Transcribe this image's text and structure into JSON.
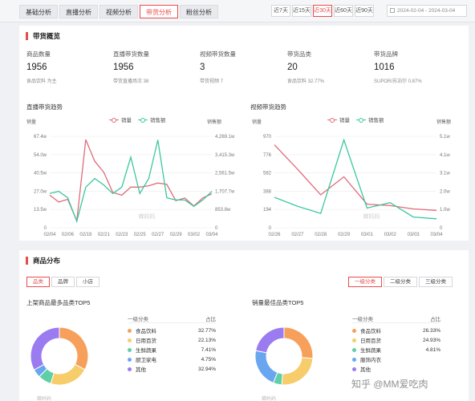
{
  "tabs": [
    "基础分析",
    "直播分析",
    "视频分析",
    "带货分析",
    "粉丝分析"
  ],
  "ranges": [
    "近7天",
    "近15天",
    "近30天",
    "近60天",
    "近90天"
  ],
  "date_range": "2024-02-04 - 2024-03-04",
  "overview": {
    "title": "带货概览",
    "metrics": [
      {
        "label": "商品数量",
        "value": "1956",
        "sub": "食品饮料 为主"
      },
      {
        "label": "直播带货数量",
        "value": "1956",
        "sub": "带货直播场次 38"
      },
      {
        "label": "视频带货数量",
        "value": "3",
        "sub": "带货视频 7"
      },
      {
        "label": "带货品类",
        "value": "20",
        "sub": "食品饮料 32.77%"
      },
      {
        "label": "带货品牌",
        "value": "1016",
        "sub": "SUPOR/苏泊尔 0.87%"
      }
    ]
  },
  "charts": {
    "live": {
      "title": "直播带货趋势",
      "legend": [
        "销量",
        "销售额"
      ],
      "left_title": "销量",
      "right_title": "销售额",
      "left_ticks": [
        "67.4w",
        "54.0w",
        "40.5w",
        "27.0w",
        "13.5w",
        "0"
      ],
      "right_ticks": [
        "4,269.1w",
        "3,415.3w",
        "2,561.5w",
        "1,707.7w",
        "853.8w",
        "0"
      ],
      "x_ticks": [
        "02/04",
        "02/06",
        "02/19",
        "02/21",
        "02/23",
        "02/25",
        "02/27",
        "02/29",
        "03/02",
        "03/04"
      ]
    },
    "video": {
      "title": "视频带货趋势",
      "legend": [
        "销量",
        "销售额"
      ],
      "left_title": "销量",
      "right_title": "销售额",
      "left_ticks": [
        "970",
        "776",
        "582",
        "388",
        "194",
        "0"
      ],
      "right_ticks": [
        "5.1w",
        "4.1w",
        "3.1w",
        "2.0w",
        "1.0w",
        "0"
      ],
      "x_ticks": [
        "02/26",
        "02/27",
        "02/28",
        "02/29",
        "03/01",
        "03/02",
        "03/03",
        "03/04"
      ]
    }
  },
  "chart_data": [
    {
      "type": "line",
      "title": "直播带货趋势",
      "x": [
        "02/04",
        "02/05",
        "02/06",
        "02/07",
        "02/19",
        "02/20",
        "02/21",
        "02/22",
        "02/23",
        "02/24",
        "02/25",
        "02/26",
        "02/27",
        "02/28",
        "02/29",
        "03/01",
        "03/02",
        "03/03",
        "03/04"
      ],
      "series": [
        {
          "name": "销量",
          "axis": "left",
          "values": [
            24,
            19,
            21,
            5,
            65,
            49,
            41,
            26,
            24,
            30,
            30,
            31,
            33,
            32,
            20,
            22,
            16,
            22,
            25
          ]
        },
        {
          "name": "销售额",
          "axis": "right",
          "values": [
            1600,
            1700,
            1400,
            300,
            1900,
            2300,
            2000,
            1600,
            1900,
            3300,
            1600,
            2300,
            4100,
            1400,
            1300,
            1300,
            1000,
            1300,
            1700
          ]
        }
      ],
      "ylim_left": [
        0,
        67.4
      ],
      "ylim_right": [
        0,
        4269.1
      ]
    },
    {
      "type": "line",
      "title": "视频带货趋势",
      "x": [
        "02/26",
        "02/27",
        "02/28",
        "02/29",
        "03/01",
        "03/02",
        "03/03",
        "03/04"
      ],
      "series": [
        {
          "name": "销量",
          "axis": "left",
          "values": [
            880,
            620,
            350,
            540,
            250,
            235,
            200,
            185
          ]
        },
        {
          "name": "销售额",
          "axis": "right",
          "values": [
            1.7,
            1.2,
            0.8,
            4.9,
            1.1,
            1.4,
            0.6,
            0.5
          ]
        }
      ],
      "ylim_left": [
        0,
        970
      ],
      "ylim_right": [
        0,
        5.1
      ]
    }
  ],
  "distribution": {
    "title": "商品分布",
    "left_buttons": [
      "品类",
      "品牌",
      "小店"
    ],
    "right_buttons": [
      "一级分类",
      "二级分类",
      "三级分类"
    ],
    "list1": {
      "title": "上架商品最多品类TOP5",
      "col1": "一级分类",
      "col2": "占比",
      "rows": [
        {
          "name": "食品饮料",
          "pct": "32.77%",
          "color": "#f6a05c"
        },
        {
          "name": "日用百货",
          "pct": "22.13%",
          "color": "#f7cc6b"
        },
        {
          "name": "生鲜蔬果",
          "pct": "7.41%",
          "color": "#5fcfa5"
        },
        {
          "name": "厨卫家电",
          "pct": "4.75%",
          "color": "#6aa6f0"
        },
        {
          "name": "其他",
          "pct": "32.94%",
          "color": "#9b7cf0"
        }
      ]
    },
    "list2": {
      "title": "销量最佳品类TOP5",
      "col1": "一级分类",
      "col2": "占比",
      "rows": [
        {
          "name": "食品饮料",
          "pct": "26.33%",
          "color": "#f6a05c"
        },
        {
          "name": "日用百货",
          "pct": "24.93%",
          "color": "#f7cc6b"
        },
        {
          "name": "生鲜蔬果",
          "pct": "4.81%",
          "color": "#5fcfa5"
        },
        {
          "name": "服饰内衣",
          "pct": "",
          "color": "#6aa6f0"
        },
        {
          "name": "其他",
          "pct": "",
          "color": "#9b7cf0"
        }
      ]
    }
  },
  "watermark": "知乎 @MM爱吃肉",
  "chart_watermark": "蝉妈妈",
  "colors": {
    "sales": "#e06b7a",
    "revenue": "#3cc7a0",
    "accent": "#e94c4c"
  }
}
